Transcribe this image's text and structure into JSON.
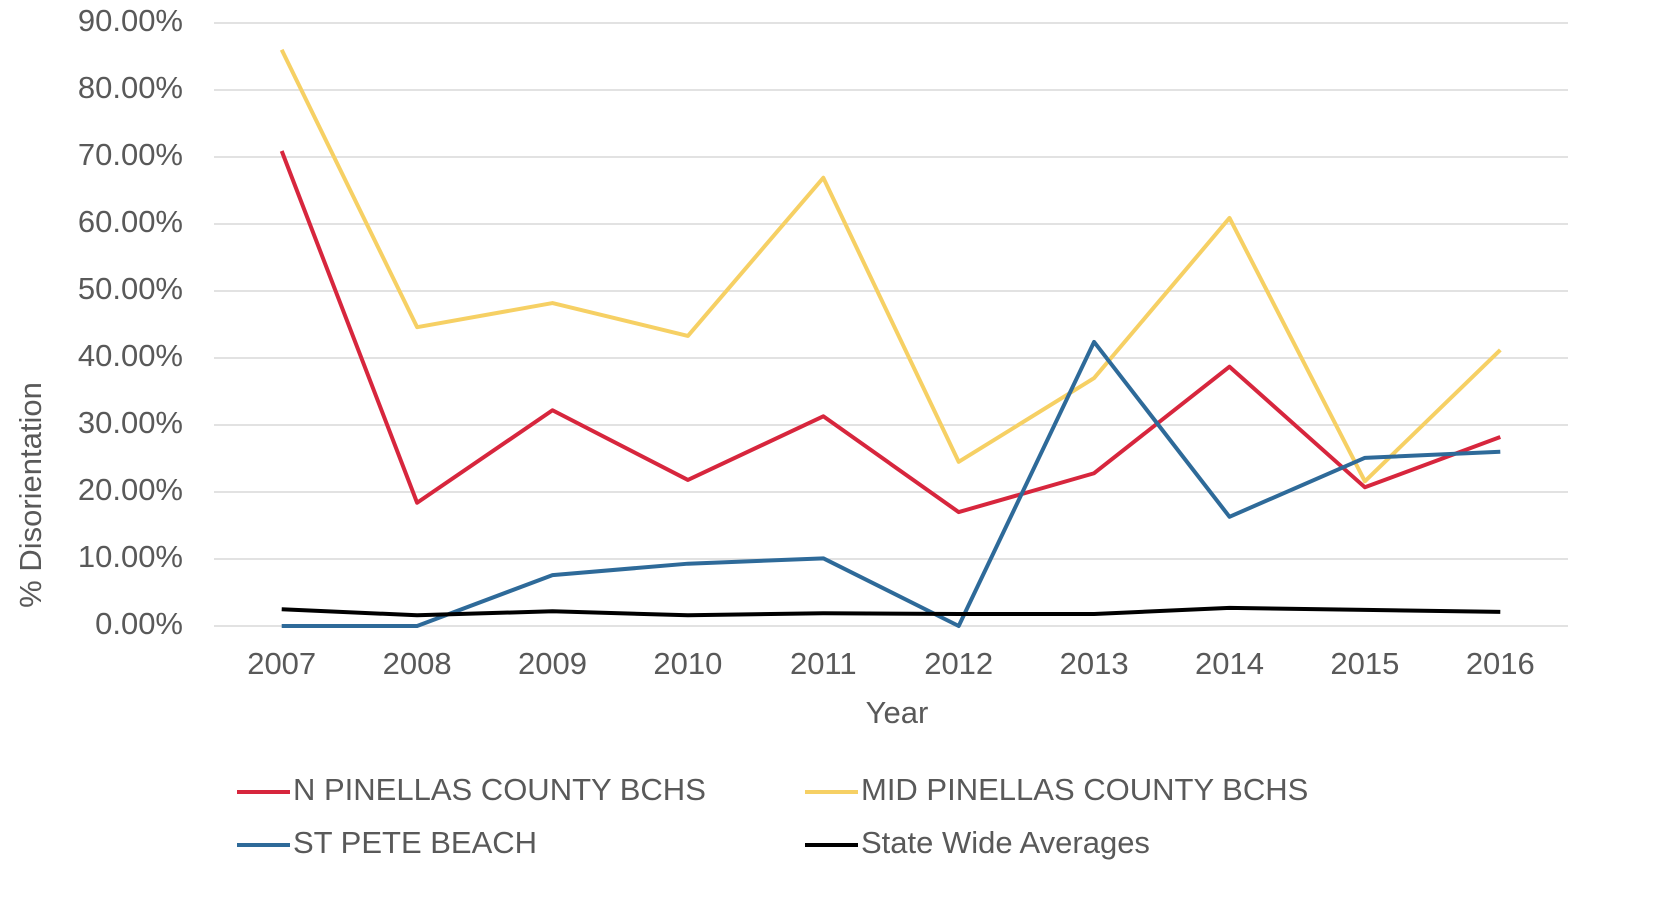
{
  "chart_data": {
    "type": "line",
    "x_label": "Year",
    "y_label": "% Disorientation",
    "categories": [
      "2007",
      "2008",
      "2009",
      "2010",
      "2011",
      "2012",
      "2013",
      "2014",
      "2015",
      "2016"
    ],
    "series": [
      {
        "name": "N PINELLAS COUNTY BCHS",
        "color": "#d7263d",
        "values": [
          70.9,
          18.4,
          32.2,
          21.8,
          31.3,
          17.0,
          22.8,
          38.7,
          20.7,
          28.2
        ]
      },
      {
        "name": "MID PINELLAS COUNTY BCHS",
        "color": "#f6d064",
        "values": [
          86.0,
          44.6,
          48.2,
          43.3,
          66.9,
          24.5,
          37.0,
          60.9,
          21.6,
          41.2
        ]
      },
      {
        "name": "ST PETE BEACH",
        "color": "#2e6a99",
        "values": [
          0,
          0,
          7.6,
          9.3,
          10.1,
          0,
          42.4,
          16.3,
          25.1,
          26.0
        ]
      },
      {
        "name": "State Wide Averages",
        "color": "#000000",
        "values": [
          2.5,
          1.6,
          2.2,
          1.6,
          1.9,
          1.8,
          1.8,
          2.7,
          2.4,
          2.1
        ]
      }
    ],
    "ylim": [
      0,
      90
    ],
    "yticks": [
      {
        "value": 0,
        "label": "0.00%"
      },
      {
        "value": 10,
        "label": "10.00%"
      },
      {
        "value": 20,
        "label": "20.00%"
      },
      {
        "value": 30,
        "label": "30.00%"
      },
      {
        "value": 40,
        "label": "40.00%"
      },
      {
        "value": 50,
        "label": "50.00%"
      },
      {
        "value": 60,
        "label": "60.00%"
      },
      {
        "value": 70,
        "label": "70.00%"
      },
      {
        "value": 80,
        "label": "80.00%"
      },
      {
        "value": 90,
        "label": "90.00%"
      }
    ],
    "grid": true,
    "legend": "bottom"
  }
}
